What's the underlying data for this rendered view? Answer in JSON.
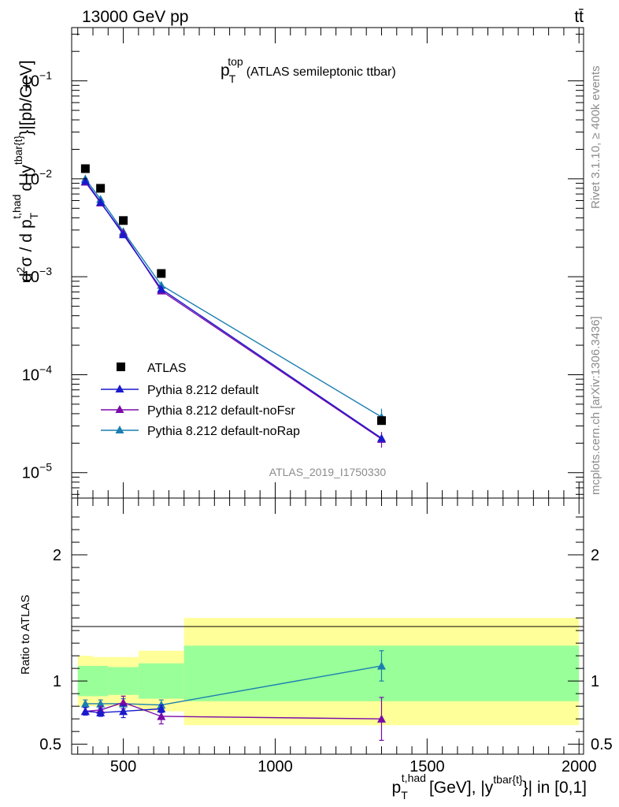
{
  "header": {
    "beam": "13000 GeV pp",
    "process": "tt̄"
  },
  "side_labels": {
    "rivet": "Rivet 3.1.10, ≥ 400k events",
    "mcplots": "mcplots.cern.ch [arXiv:1306.3436]"
  },
  "chart_data": [
    {
      "type": "line",
      "panel": "main",
      "title": "p_T^top (ATLAS semileptonic ttbar)",
      "title_parts": {
        "base": "p",
        "sup": "top",
        "sub": "T",
        "rest": "(ATLAS semileptonic ttbar)"
      },
      "ylabel": "d²σ / d p_T^{t,had} d |y^{tbar{t}}|[pb/GeV]",
      "ylabel_parts": {
        "d2sigma": "σ",
        "d": "d",
        "two": "2",
        "slash": "/",
        "p": "p",
        "sub_T": "T",
        "sup_thad": "t,had",
        "d_abs": "d |y",
        "sup_tbar": "tbar{t}",
        "tail": "}|[pb/GeV]"
      },
      "yscale": "log",
      "ylim": [
        5.5e-06,
        0.35
      ],
      "xlim": [
        330,
        2015
      ],
      "y_ticks": [
        {
          "value": 0.1,
          "base": "10",
          "exp": "−1"
        },
        {
          "value": 0.01,
          "base": "10",
          "exp": "−2"
        },
        {
          "value": 0.001,
          "base": "10",
          "exp": "−3"
        },
        {
          "value": 0.0001,
          "base": "10",
          "exp": "−4"
        },
        {
          "value": 1e-05,
          "base": "10",
          "exp": "−5"
        }
      ],
      "watermark": "ATLAS_2019_I1750330",
      "legend_position": "lower-left",
      "series": [
        {
          "name": "ATLAS",
          "kind": "data",
          "marker": "square",
          "color": "#000000",
          "x": [
            375,
            425,
            500,
            625,
            1350
          ],
          "y": [
            0.0127,
            0.008,
            0.00375,
            0.00108,
            3.4e-05
          ]
        },
        {
          "name": "Pythia 8.212 default",
          "kind": "mc",
          "marker": "triangle",
          "color": "#1a1acd",
          "x": [
            375,
            425,
            500,
            625,
            1350
          ],
          "y": [
            0.0095,
            0.0058,
            0.0027,
            0.00075,
            2.25e-05
          ]
        },
        {
          "name": "Pythia 8.212 default-noFsr",
          "kind": "mc",
          "marker": "triangle",
          "color": "#7b0aa9",
          "x": [
            375,
            425,
            500,
            625,
            1350
          ],
          "y": [
            0.0093,
            0.0057,
            0.0028,
            0.00072,
            2.2e-05
          ],
          "yerr_high": [
            0,
            0,
            0,
            0,
            4e-06
          ],
          "yerr_low": [
            0,
            0,
            0,
            0,
            4e-06
          ]
        },
        {
          "name": "Pythia 8.212 default-noRap",
          "kind": "mc",
          "marker": "triangle",
          "color": "#1a7fb0",
          "x": [
            375,
            425,
            500,
            625,
            1350
          ],
          "y": [
            0.01,
            0.0062,
            0.0029,
            0.00082,
            3.7e-05
          ],
          "yerr_high": [
            0,
            0,
            0,
            0,
            8e-06
          ],
          "yerr_low": [
            0,
            0,
            0,
            0,
            6e-06
          ]
        }
      ]
    },
    {
      "type": "line",
      "panel": "ratio",
      "ylabel": "Ratio to ATLAS",
      "xlabel": "p_T^{t,had} [GeV], |y^{tbar{t}}| in [0,1]",
      "xlabel_parts": {
        "p": "p",
        "sub_T": "T",
        "sup_thad": "t,had",
        "mid": "[GeV], |y",
        "sup_tbar": "tbar{t}",
        "tail": "}| in [0,1]"
      },
      "ylim": [
        0.42,
        2.45
      ],
      "xlim": [
        330,
        2015
      ],
      "y_ticks": [
        {
          "value": 0.5,
          "label": "0.5"
        },
        {
          "value": 1,
          "label": "1"
        },
        {
          "value": 2,
          "label": "2"
        }
      ],
      "x_ticks": [
        {
          "value": 500,
          "label": "500"
        },
        {
          "value": 1000,
          "label": "1000"
        },
        {
          "value": 1500,
          "label": "1500"
        },
        {
          "value": 2000,
          "label": "2000"
        }
      ],
      "bands": [
        {
          "x0": 350,
          "x1": 400,
          "stat_lo": 0.88,
          "stat_hi": 1.12,
          "tot_lo": 0.8,
          "tot_hi": 1.2
        },
        {
          "x0": 400,
          "x1": 450,
          "stat_lo": 0.88,
          "stat_hi": 1.12,
          "tot_lo": 0.8,
          "tot_hi": 1.19
        },
        {
          "x0": 450,
          "x1": 550,
          "stat_lo": 0.89,
          "stat_hi": 1.11,
          "tot_lo": 0.8,
          "tot_hi": 1.19
        },
        {
          "x0": 550,
          "x1": 700,
          "stat_lo": 0.86,
          "stat_hi": 1.14,
          "tot_lo": 0.76,
          "tot_hi": 1.24
        },
        {
          "x0": 700,
          "x1": 2000,
          "stat_lo": 0.84,
          "stat_hi": 1.28,
          "tot_lo": 0.65,
          "tot_hi": 1.5
        }
      ],
      "series": [
        {
          "name": "Pythia 8.212 default",
          "color": "#1a1acd",
          "x": [
            375,
            425,
            500,
            625
          ],
          "y": [
            0.76,
            0.75,
            0.76,
            0.78
          ],
          "yerr": [
            0.03,
            0.03,
            0.05,
            0.03
          ]
        },
        {
          "name": "Pythia 8.212 default-noFsr",
          "color": "#7b0aa9",
          "x": [
            375,
            425,
            500,
            625,
            1350
          ],
          "y": [
            0.76,
            0.77,
            0.83,
            0.72,
            0.7
          ],
          "yerr": [
            0.03,
            0.03,
            0.05,
            0.06,
            0.17
          ]
        },
        {
          "name": "Pythia 8.212 default-noRap",
          "color": "#1a7fb0",
          "x": [
            375,
            425,
            500,
            625,
            1350
          ],
          "y": [
            0.82,
            0.82,
            0.82,
            0.81,
            1.12
          ],
          "yerr": [
            0.03,
            0.03,
            0.04,
            0.04,
            0.12
          ]
        }
      ]
    }
  ]
}
